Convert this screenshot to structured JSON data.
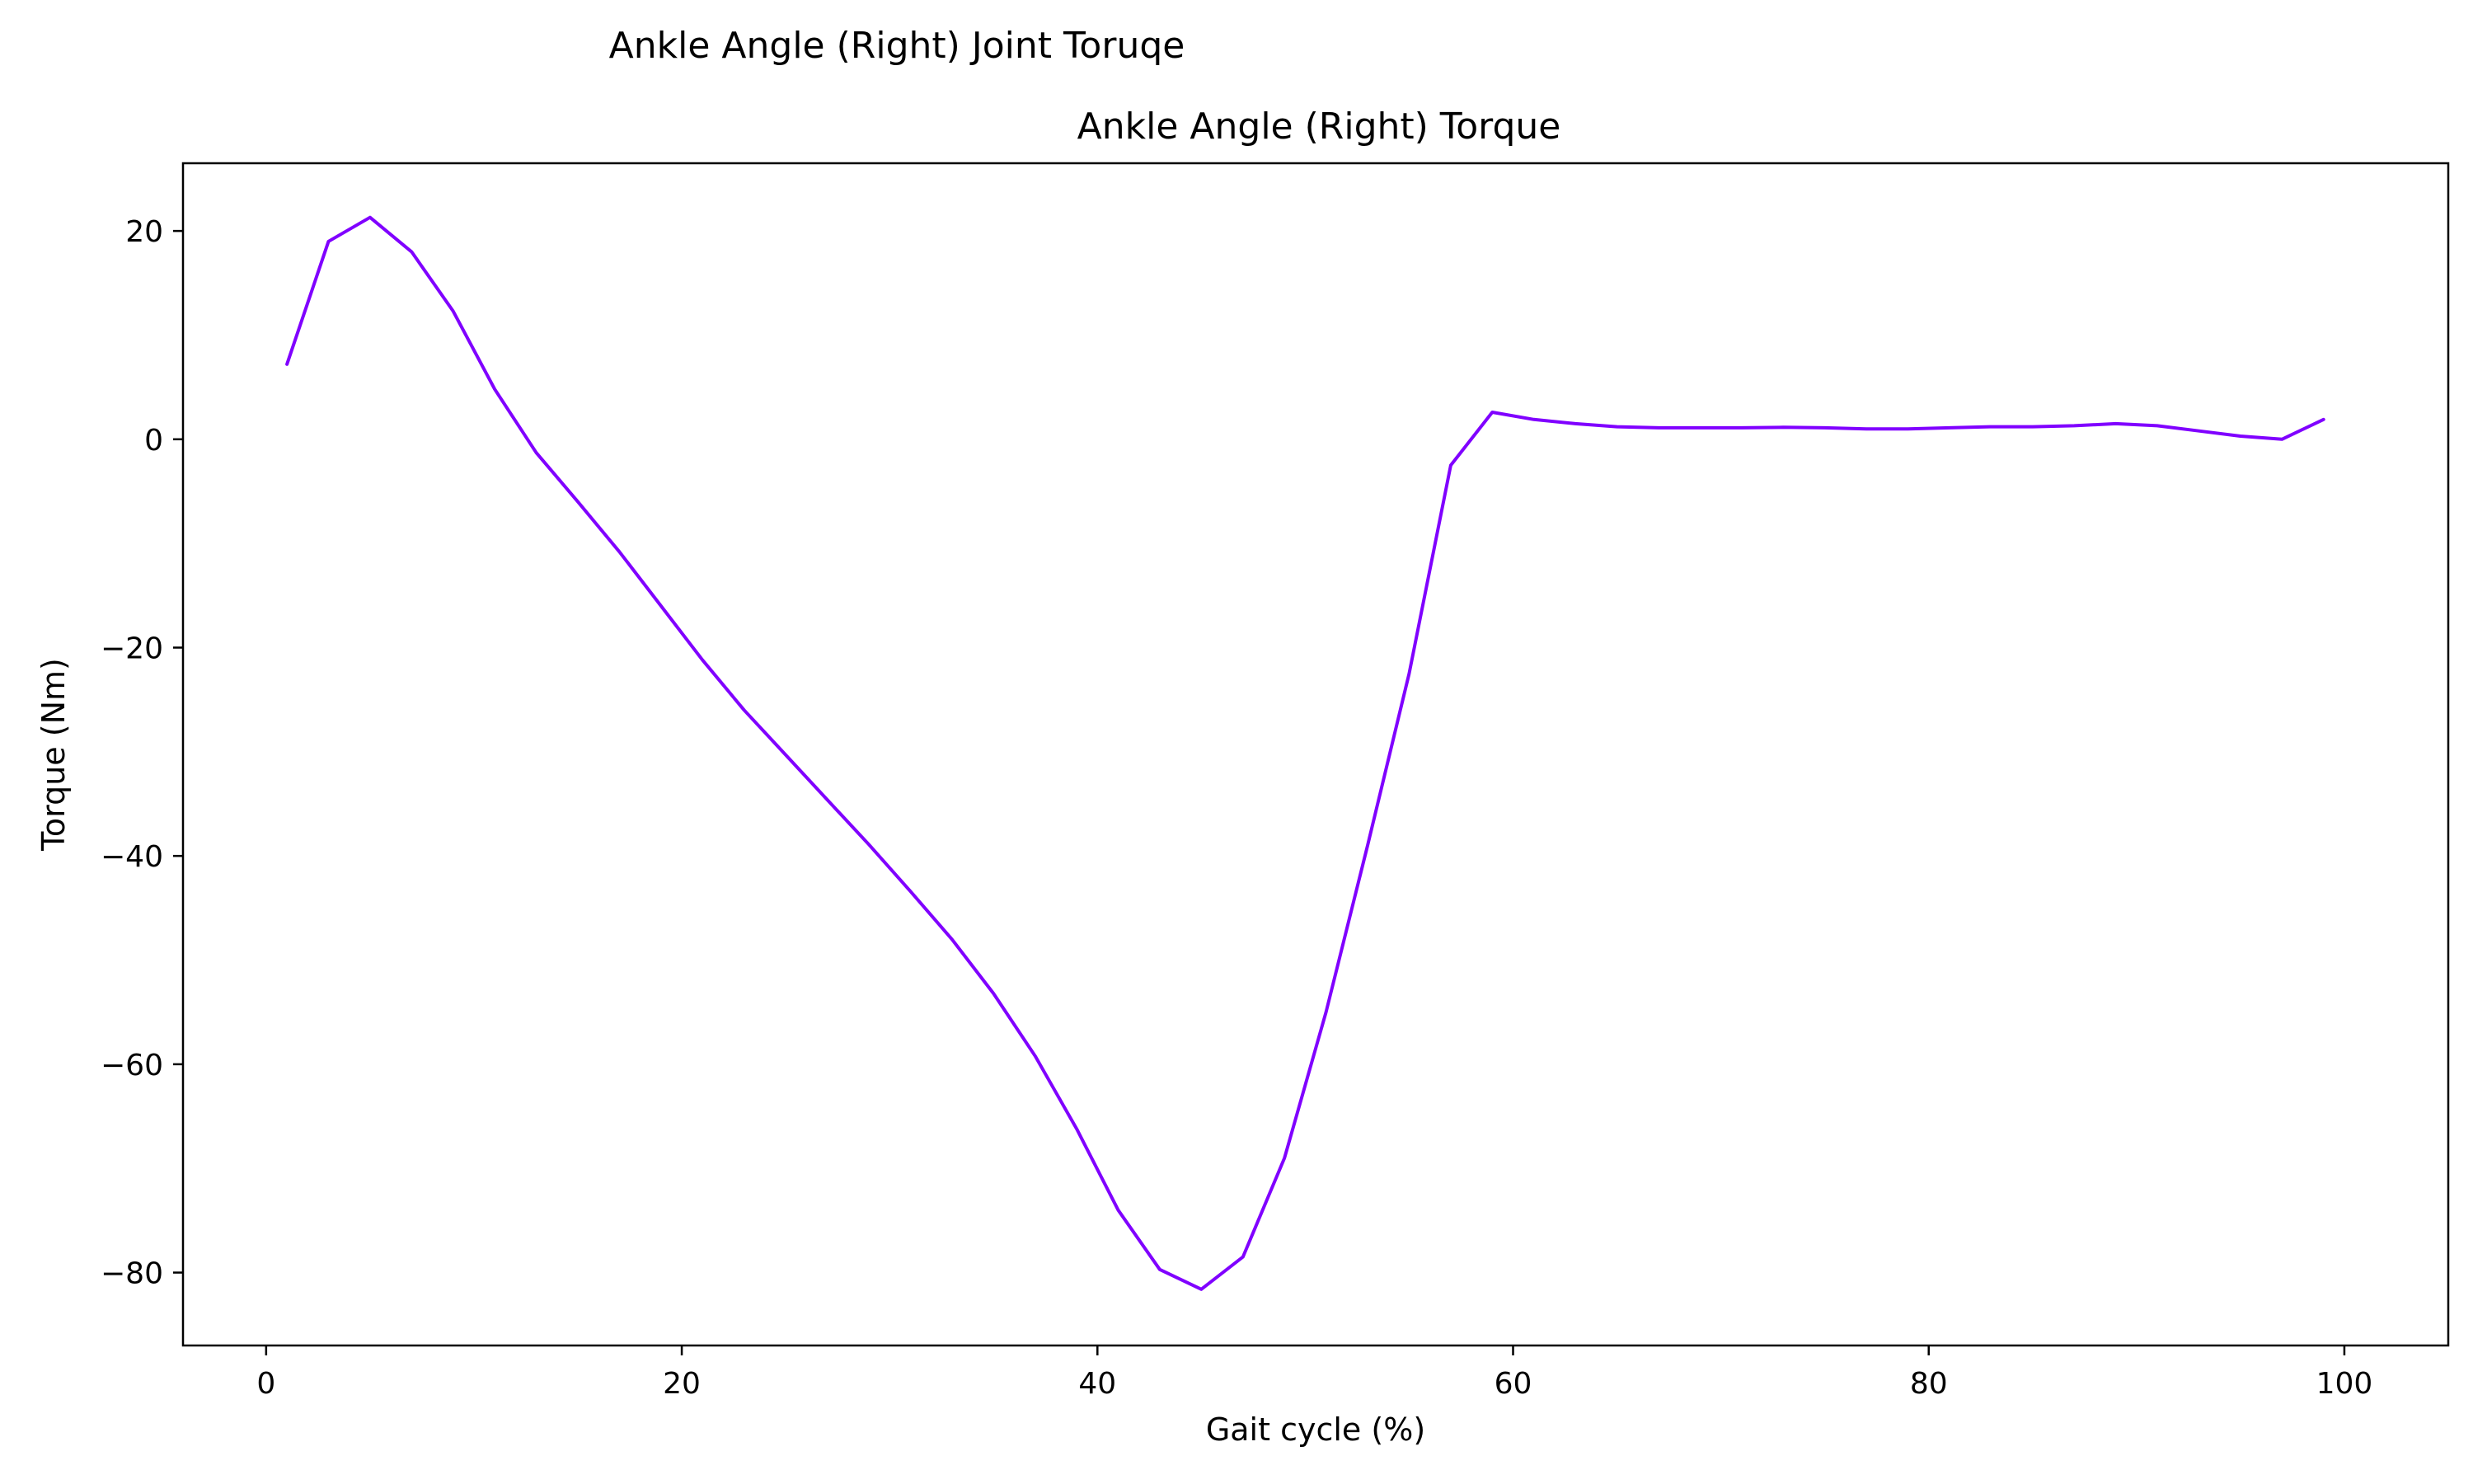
{
  "chart_data": {
    "type": "line",
    "suptitle": "Ankle Angle (Right) Joint Toruqe",
    "title": "Ankle Angle (Right) Torque",
    "xlabel": "Gait cycle (%)",
    "ylabel": "Torque (Nm)",
    "xlim": [
      -4,
      105
    ],
    "ylim": [
      -87,
      26.5
    ],
    "xticks": [
      0,
      20,
      40,
      60,
      80,
      100
    ],
    "xtick_labels": [
      "0",
      "20",
      "40",
      "60",
      "80",
      "100"
    ],
    "yticks": [
      20,
      0,
      -20,
      -40,
      -60,
      -80
    ],
    "ytick_labels": [
      "20",
      "0",
      "−20",
      "−40",
      "−60",
      "−80"
    ],
    "grid": false,
    "series": [
      {
        "color": "#8000ff",
        "x": [
          1,
          3,
          5,
          7,
          9,
          11,
          13,
          15,
          17,
          19,
          21,
          23,
          25,
          27,
          29,
          31,
          33,
          35,
          37,
          39,
          41,
          43,
          45,
          47,
          49,
          51,
          53,
          55,
          57,
          59,
          61,
          63,
          65,
          67,
          69,
          71,
          73,
          75,
          77,
          79,
          81,
          83,
          85,
          87,
          89,
          91,
          93,
          95,
          97,
          99
        ],
        "y": [
          7.2,
          19.0,
          21.3,
          18.0,
          12.3,
          4.8,
          -1.3,
          -6.0,
          -10.8,
          -16.0,
          -21.2,
          -26.0,
          -30.3,
          -34.6,
          -38.9,
          -43.4,
          -48.0,
          -53.2,
          -59.2,
          -66.2,
          -74.0,
          -79.7,
          -81.6,
          -78.5,
          -69.0,
          -55.0,
          -39.0,
          -22.5,
          -2.5,
          2.6,
          1.9,
          1.5,
          1.2,
          1.1,
          1.1,
          1.1,
          1.15,
          1.1,
          1.0,
          1.0,
          1.1,
          1.2,
          1.2,
          1.3,
          1.5,
          1.3,
          0.8,
          0.3,
          0.0,
          1.9
        ]
      }
    ]
  }
}
